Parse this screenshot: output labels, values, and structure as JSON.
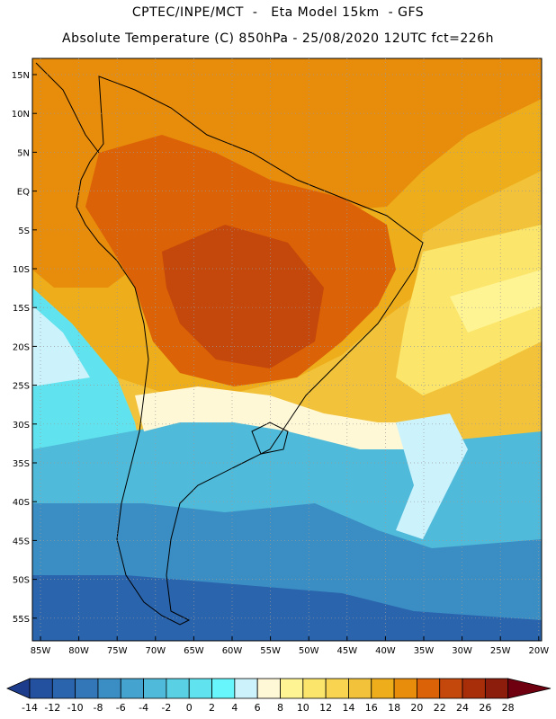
{
  "header": {
    "line1": "CPTEC/INPE/MCT  -   Eta Model 15km  - GFS",
    "line2": "Absolute Temperature (C) 850hPa - 25/08/2020 12UTC fct=226h"
  },
  "map": {
    "lat_labels": [
      "15N",
      "10N",
      "5N",
      "EQ",
      "5S",
      "10S",
      "15S",
      "20S",
      "25S",
      "30S",
      "35S",
      "40S",
      "45S",
      "50S",
      "55S"
    ],
    "lon_labels": [
      "85W",
      "80W",
      "75W",
      "70W",
      "65W",
      "60W",
      "55W",
      "50W",
      "45W",
      "40W",
      "35W",
      "30W",
      "25W",
      "20W"
    ]
  },
  "colorbar": {
    "labels": [
      "-14",
      "-12",
      "-10",
      "-8",
      "-6",
      "-4",
      "-2",
      "0",
      "2",
      "4",
      "6",
      "8",
      "10",
      "12",
      "14",
      "16",
      "18",
      "20",
      "22",
      "24",
      "26",
      "28"
    ],
    "colors": [
      "#1e3c8c",
      "#24519f",
      "#2a64ad",
      "#3377b8",
      "#3b8ec4",
      "#44a3cf",
      "#4fbad9",
      "#5ad0e4",
      "#60e3ee",
      "#66f6fb",
      "#ccf2fc",
      "#fff8d6",
      "#fff494",
      "#fbe56a",
      "#f8d451",
      "#f2c33a",
      "#eeae1c",
      "#e88c0c",
      "#db6206",
      "#c4470b",
      "#a82e0a",
      "#8c1c0c",
      "#6e0010"
    ]
  }
}
